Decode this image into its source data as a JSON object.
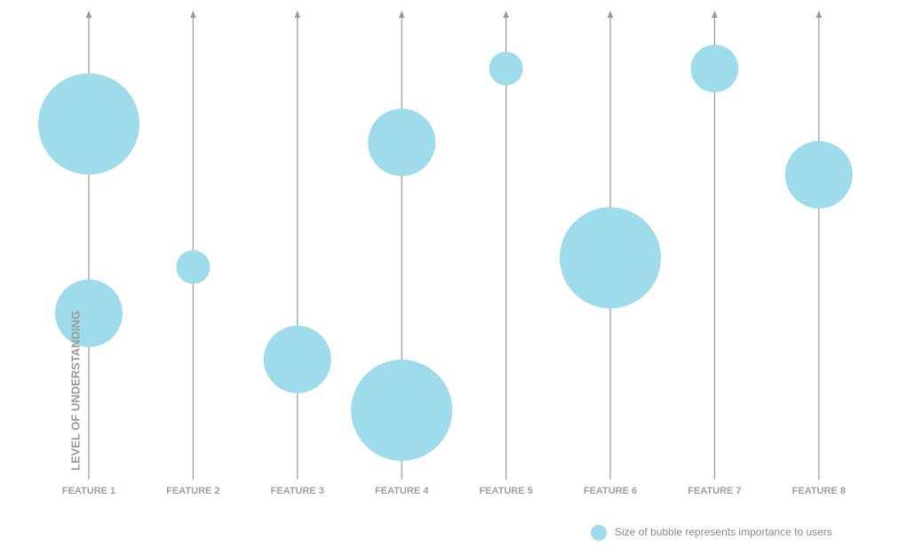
{
  "chart_data": {
    "type": "bubble",
    "y_axis_label": "LEVEL OF UNDERSTANDING",
    "categories": [
      "FEATURE 1",
      "FEATURE 2",
      "FEATURE 3",
      "FEATURE 4",
      "FEATURE 5",
      "FEATURE 6",
      "FEATURE 7",
      "FEATURE 8"
    ],
    "series": [
      {
        "values": [
          77,
          46,
          26,
          73,
          89,
          48,
          89,
          66
        ],
        "sizes": [
          9,
          1,
          4,
          4,
          1,
          9,
          2,
          4
        ]
      },
      {
        "values": [
          36,
          null,
          null,
          15,
          null,
          null,
          null,
          null
        ],
        "sizes": [
          4,
          null,
          null,
          9,
          null,
          null,
          null,
          null
        ]
      }
    ],
    "color": "#9edcec",
    "ylim": [
      0,
      100
    ],
    "size_legend": "Size of bubble represents importance to users"
  }
}
